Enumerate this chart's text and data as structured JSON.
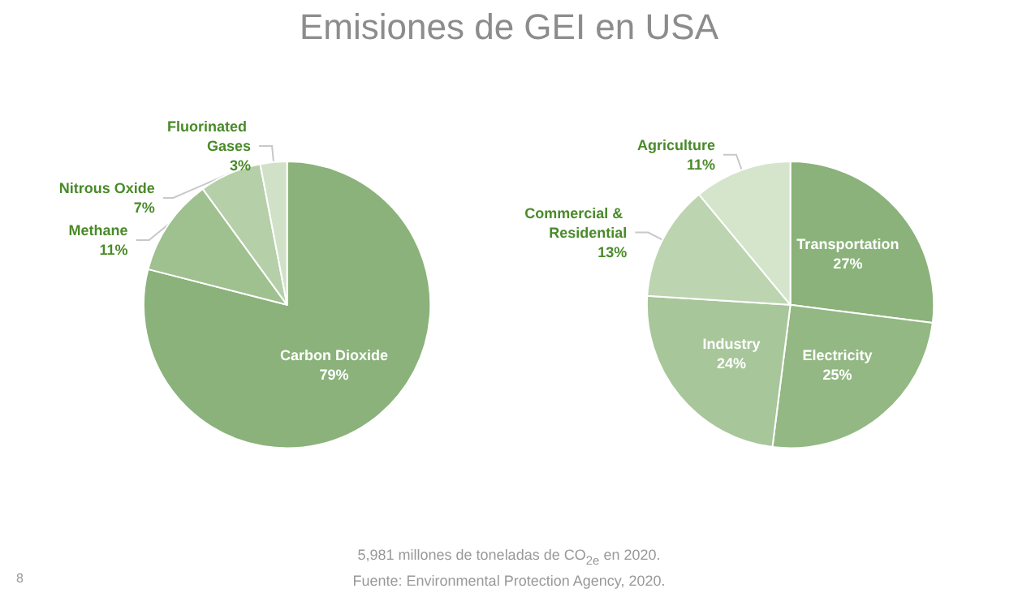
{
  "chart_data": [
    {
      "type": "pie",
      "title": "Emisiones de GEI en USA",
      "categories": [
        "Carbon Dioxide",
        "Methane",
        "Nitrous Oxide",
        "Fluorinated Gases"
      ],
      "values": [
        79,
        11,
        7,
        3
      ],
      "value_labels": [
        "79%",
        "11%",
        "7%",
        "3%"
      ],
      "colors": [
        "#8ab27a",
        "#9fc08f",
        "#b5cfa8",
        "#d0e1c7"
      ],
      "annotations": [
        "8",
        "5,981 millones de toneladas de CO$_{2e}$ en 2020.",
        "Fuente: Environmental Protection Agency, 2020."
      ]
    },
    {
      "type": "pie",
      "categories": [
        "Transportation",
        "Electricity",
        "Industry",
        "Commercial & Residential",
        "Agriculture"
      ],
      "values": [
        27,
        25,
        24,
        13,
        11
      ],
      "value_labels": [
        "27%",
        "25%",
        "24%",
        "13%",
        "11%"
      ],
      "colors": [
        "#8ab27a",
        "#93b883",
        "#a7c69a",
        "#bcd5b0",
        "#d5e5cc"
      ]
    }
  ]
}
